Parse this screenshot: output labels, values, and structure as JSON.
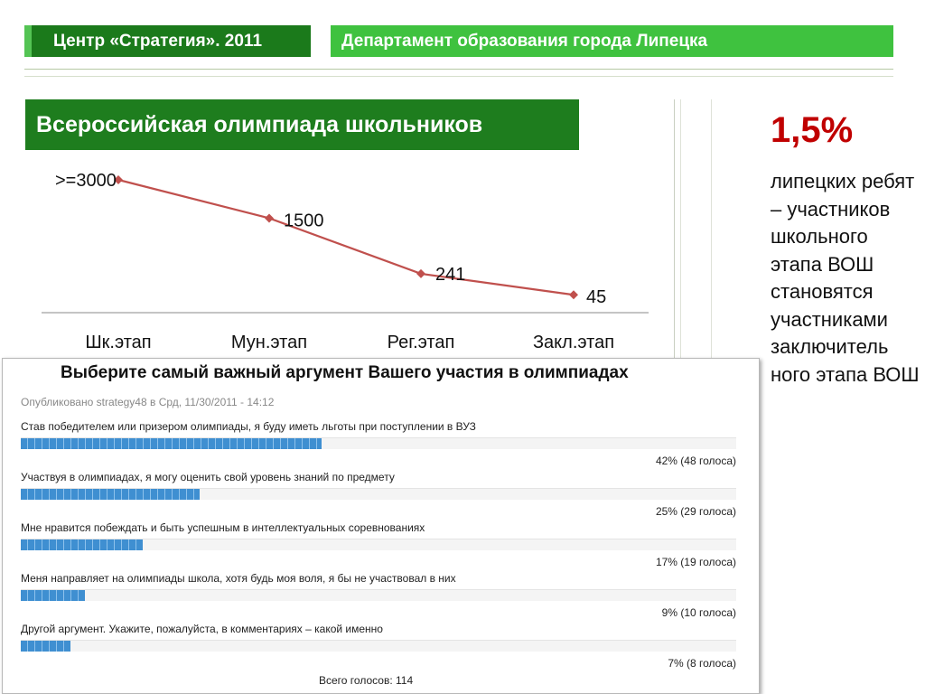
{
  "header": {
    "left_title": "Центр «Стратегия». 2011",
    "right_title": "Департамент образования города Липецка"
  },
  "chart_title": "Всероссийская олимпиада школьников",
  "chart_data": {
    "type": "line",
    "title": "Всероссийская олимпиада школьников",
    "categories": [
      "Шк.этап",
      "Мун.этап",
      "Рег.этап",
      "Закл.этап"
    ],
    "data_labels": [
      ">=3000",
      "1500",
      "241",
      "45"
    ],
    "values": [
      3000,
      1500,
      241,
      45
    ],
    "ylim": [
      0,
      3000
    ],
    "color": "#c0504d"
  },
  "stat": {
    "value": "1,5%",
    "caption": "липецких ребят – участников школьного этапа ВОШ становятся участниками заключитель ного этапа ВОШ"
  },
  "poll": {
    "title": "Выберите самый важный аргумент Вашего участия в олимпиадах",
    "meta": "Опубликовано strategy48 в Срд, 11/30/2011 - 14:12",
    "options": [
      {
        "label": "Став победителем или призером олимпиады, я буду иметь льготы при поступлении в ВУЗ",
        "percent": 42,
        "result": "42% (48 голоса)"
      },
      {
        "label": "Участвуя в олимпиадах, я могу оценить свой уровень знаний по предмету",
        "percent": 25,
        "result": "25% (29 голоса)"
      },
      {
        "label": "Мне нравится побеждать и быть успешным в интеллектуальных соревнованиях",
        "percent": 17,
        "result": "17% (19 голоса)"
      },
      {
        "label": "Меня направляет на олимпиады школа, хотя будь моя воля, я бы не участвовал в них",
        "percent": 9,
        "result": "9% (10 голоса)"
      },
      {
        "label": "Другой аргумент. Укажите, пожалуйста, в комментариях – какой именно",
        "percent": 7,
        "result": "7% (8 голоса)"
      }
    ],
    "total": "Всего голосов: 114"
  }
}
